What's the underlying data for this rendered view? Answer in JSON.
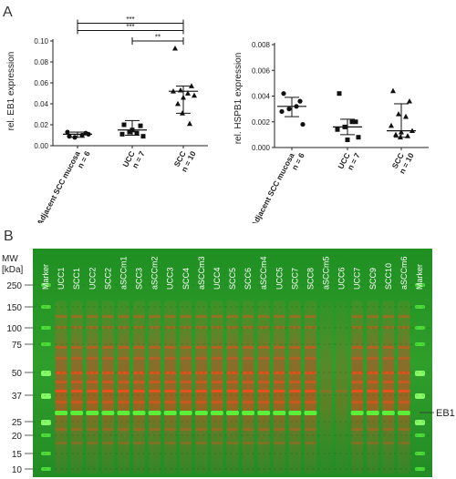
{
  "panel_a_letter": "A",
  "panel_b_letter": "B",
  "chart_data": [
    {
      "type": "scatter",
      "ylabel": "rel. EB1 expression",
      "ylim": [
        0,
        0.1
      ],
      "yticks": [
        "0.00",
        "0.02",
        "0.04",
        "0.06",
        "0.08",
        "0.10"
      ],
      "categories": [
        {
          "label": "Adjacent SCC mucosa",
          "n": "n = 6",
          "marker": "circle",
          "values": [
            0.009,
            0.012,
            0.008,
            0.01,
            0.013,
            0.011
          ],
          "mean": 0.011,
          "sd_low": 0.008,
          "sd_high": 0.013
        },
        {
          "label": "UCC",
          "n": "n = 7",
          "marker": "square",
          "values": [
            0.02,
            0.019,
            0.013,
            0.012,
            0.011,
            0.009,
            0.015
          ],
          "mean": 0.015,
          "sd_low": 0.01,
          "sd_high": 0.024
        },
        {
          "label": "SCC",
          "n": "n = 10",
          "marker": "triangle",
          "values": [
            0.093,
            0.057,
            0.053,
            0.05,
            0.052,
            0.048,
            0.046,
            0.04,
            0.021,
            0.031
          ],
          "mean": 0.052,
          "sd_low": 0.031,
          "sd_high": 0.057
        }
      ],
      "significance": [
        {
          "label": "***",
          "from": 0,
          "to": 2,
          "y": 0.117
        },
        {
          "label": "***",
          "from": 0,
          "to": 2,
          "y": 0.11
        },
        {
          "label": "**",
          "from": 1,
          "to": 2,
          "y": 0.1
        }
      ]
    },
    {
      "type": "scatter",
      "ylabel": "rel. HSPB1 expression",
      "ylim": [
        0,
        0.008
      ],
      "yticks": [
        "0.000",
        "0.002",
        "0.004",
        "0.006",
        "0.008"
      ],
      "categories": [
        {
          "label": "Adjacent SCC mucosa",
          "n": "n = 6",
          "marker": "circle",
          "values": [
            0.0042,
            0.0036,
            0.003,
            0.0032,
            0.0028,
            0.0018
          ],
          "mean": 0.0032,
          "sd_low": 0.0024,
          "sd_high": 0.0039
        },
        {
          "label": "UCC",
          "n": "n = 7",
          "marker": "square",
          "values": [
            0.0042,
            0.002,
            0.0016,
            0.002,
            0.0014,
            0.0008,
            0.0006
          ],
          "mean": 0.0016,
          "sd_low": 0.001,
          "sd_high": 0.0022
        },
        {
          "label": "SCC",
          "n": "n = 10",
          "marker": "triangle",
          "values": [
            0.0044,
            0.0036,
            0.0026,
            0.0024,
            0.0017,
            0.0013,
            0.0012,
            0.001,
            0.0009,
            0.0008
          ],
          "mean": 0.0013,
          "sd_low": 0.0008,
          "sd_high": 0.0034
        }
      ]
    }
  ],
  "blot": {
    "mw_title": "MW",
    "mw_unit": "[kDa]",
    "markers": [
      {
        "label": "250",
        "kda": 250
      },
      {
        "label": "150",
        "kda": 150
      },
      {
        "label": "100",
        "kda": 100
      },
      {
        "label": "75",
        "kda": 75
      },
      {
        "label": "50",
        "kda": 50
      },
      {
        "label": "37",
        "kda": 37
      },
      {
        "label": "25",
        "kda": 25
      },
      {
        "label": "20",
        "kda": 20
      },
      {
        "label": "15",
        "kda": 15
      },
      {
        "label": "10",
        "kda": 10
      }
    ],
    "lanes": [
      "Marker",
      "UCC1",
      "SCC1",
      "UCC2",
      "SCC2",
      "aSCCm1",
      "SCC3",
      "aSCCm2",
      "UCC3",
      "SCC4",
      "aSCCm3",
      "UCC4",
      "SCC5",
      "SCC6",
      "aSCCm4",
      "UCC5",
      "SCC7",
      "SCC8",
      "aSCCm5",
      "UCC6",
      "UCC7",
      "SCC9",
      "SCC10",
      "aSCCm6",
      "Marker"
    ],
    "band_label": "EB1",
    "colors": {
      "background": "#2f9e2b",
      "red_band": "#e0501c",
      "green_band": "#4bea2e"
    }
  }
}
